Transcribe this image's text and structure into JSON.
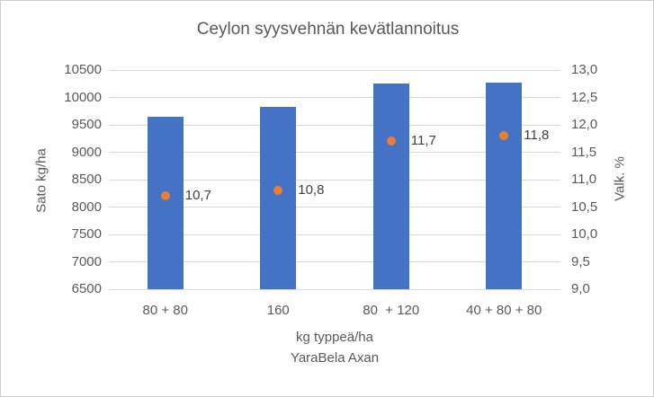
{
  "window": {
    "background": "#ffffff",
    "border_color": "#cdcdcd"
  },
  "chart_data": {
    "type": "bar",
    "title": "Ceylon syysvehnän kevätlannoitus",
    "categories": [
      "80 + 80",
      "160",
      "80  + 120",
      "40 + 80 + 80"
    ],
    "series": [
      {
        "name": "Sato kg/ha",
        "render": "bar",
        "axis": "left",
        "values": [
          9650,
          9830,
          10250,
          10270
        ],
        "color": "#4472c4"
      },
      {
        "name": "Valk. %",
        "render": "point",
        "axis": "right",
        "values": [
          10.7,
          10.8,
          11.7,
          11.8
        ],
        "labels": [
          "10,7",
          "10,8",
          "11,7",
          "11,8"
        ],
        "color": "#ed7d31"
      }
    ],
    "left_axis": {
      "label": "Sato kg/ha",
      "min": 6500,
      "max": 10500,
      "step": 500,
      "ticks": [
        "6500",
        "7000",
        "7500",
        "8000",
        "8500",
        "9000",
        "9500",
        "10000",
        "10500"
      ]
    },
    "right_axis": {
      "label": "Valk. %",
      "min": 9.0,
      "max": 13.0,
      "step": 0.5,
      "ticks": [
        "9,0",
        "9,5",
        "10,0",
        "10,5",
        "11,0",
        "11,5",
        "12,0",
        "12,5",
        "13,0"
      ]
    },
    "x_axis": {
      "label_line1": "kg typpeä/ha",
      "label_line2": "YaraBela Axan"
    },
    "grid": true,
    "gridline_color": "#d9d9d9",
    "text_color": "#595959",
    "data_label_color": "#404040",
    "legend": "none"
  }
}
